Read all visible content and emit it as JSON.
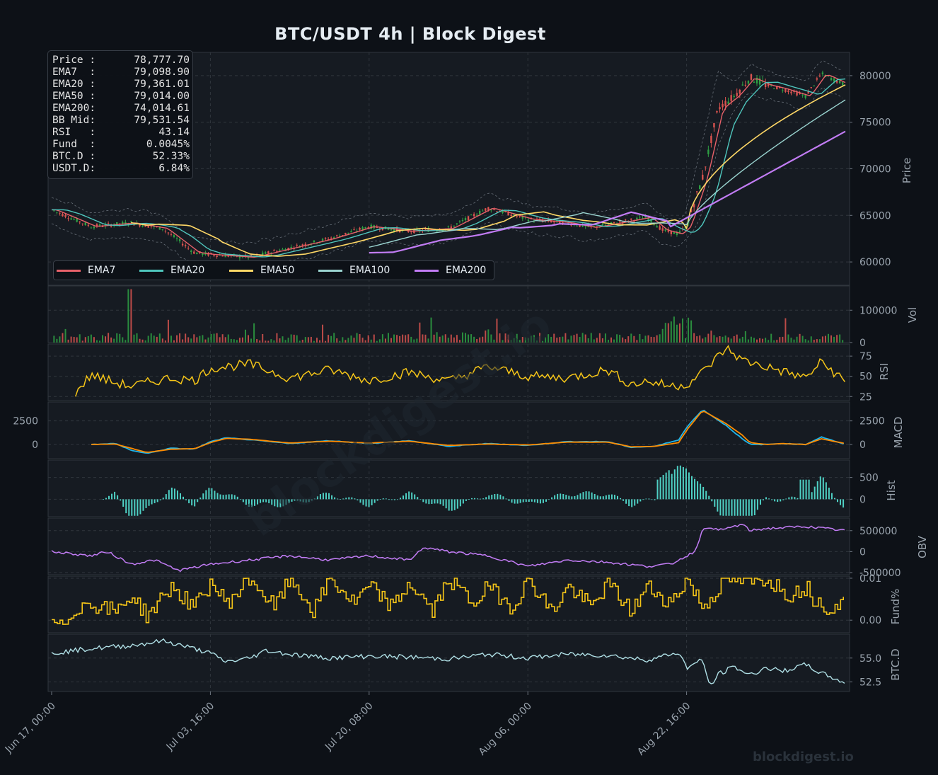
{
  "title": "BTC/USDT  4h  |  Block Digest",
  "watermark": "blockdigest.io",
  "brand": "blockdigest.io",
  "infobox": [
    {
      "key": "Price :",
      "value": "78,777.70"
    },
    {
      "key": "EMA7  :",
      "value": "79,098.90"
    },
    {
      "key": "EMA20 :",
      "value": "79,361.01"
    },
    {
      "key": "EMA50 :",
      "value": "79,014.00"
    },
    {
      "key": "EMA200:",
      "value": "74,014.61"
    },
    {
      "key": "BB Mid:",
      "value": "79,531.54"
    },
    {
      "key": "RSI   :",
      "value": "43.14"
    },
    {
      "key": "Fund  :",
      "value": "0.0045%"
    },
    {
      "key": "BTC.D :",
      "value": "52.33%"
    },
    {
      "key": "USDT.D:",
      "value": "6.84%"
    }
  ],
  "legend": [
    {
      "name": "EMA7",
      "color": "#e8616a"
    },
    {
      "name": "EMA20",
      "color": "#4fc6bd"
    },
    {
      "name": "EMA50",
      "color": "#ffd866"
    },
    {
      "name": "EMA100",
      "color": "#9ad4d0"
    },
    {
      "name": "EMA200",
      "color": "#c27cf5"
    }
  ],
  "colors": {
    "background": "#0d1117",
    "panel": "#161b22",
    "grid": "#30363d",
    "candle_up": "#2ea043",
    "candle_down": "#d9534f",
    "rsi": "#f5c518",
    "macd": "#1fb6ec",
    "signal": "#ff8c00",
    "hist": "#4fd1c5",
    "obv": "#c27cf5",
    "funding": "#f5c518",
    "btcd": "#b0e0e6",
    "text": "#9aa4ae"
  },
  "chart_data": {
    "type": "line",
    "x_tick_labels": [
      "Jun 17, 00:00",
      "Jul 03, 16:00",
      "Jul 20, 08:00",
      "Aug 06, 00:00",
      "Aug 22, 16:00"
    ],
    "panels": [
      {
        "id": "price",
        "ylabel": "Price",
        "ylim": [
          57500,
          82500
        ],
        "ticks": [
          "60000",
          "65000",
          "70000",
          "75000",
          "80000"
        ],
        "series": [
          "EMA7",
          "EMA20",
          "EMA50",
          "EMA100",
          "EMA200"
        ],
        "path_x": [
          0,
          5,
          10,
          14,
          18,
          20,
          25,
          30,
          35,
          40,
          45,
          50,
          55,
          60,
          65,
          68,
          70,
          75,
          77,
          79,
          80,
          82,
          84,
          86,
          88,
          90,
          92,
          95,
          97,
          100
        ],
        "path_y": [
          65600,
          63800,
          64200,
          63600,
          61000,
          60800,
          60500,
          61500,
          62500,
          63800,
          63300,
          63600,
          65800,
          64600,
          64200,
          63700,
          64000,
          64800,
          63400,
          63000,
          63900,
          69000,
          76500,
          77800,
          79800,
          79000,
          78600,
          77800,
          80200,
          79000
        ]
      },
      {
        "id": "vol",
        "ylabel": "Vol",
        "ylim": [
          0,
          175000
        ],
        "ticks": [
          "0",
          "100000"
        ]
      },
      {
        "id": "rsi",
        "ylabel": "RSI",
        "ylim": [
          20,
          90
        ],
        "ticks": [
          "25",
          "50",
          "75"
        ],
        "path_x": [
          3,
          5,
          8,
          10,
          15,
          18,
          20,
          25,
          30,
          35,
          40,
          45,
          50,
          55,
          60,
          65,
          70,
          73,
          75,
          78,
          80,
          82,
          85,
          87,
          90,
          95,
          97,
          100
        ],
        "path_y": [
          30,
          52,
          42,
          38,
          48,
          45,
          60,
          65,
          48,
          58,
          45,
          55,
          44,
          62,
          50,
          48,
          58,
          40,
          44,
          38,
          40,
          55,
          85,
          70,
          62,
          48,
          68,
          43
        ]
      },
      {
        "id": "macd",
        "ylabel": "MACD",
        "ylim": [
          -1500,
          4500
        ],
        "ticks": [
          "0",
          "2500"
        ],
        "left_tick": "2500",
        "path_x": [
          5,
          8,
          10,
          12,
          15,
          18,
          20,
          22,
          25,
          30,
          35,
          40,
          45,
          50,
          55,
          60,
          65,
          70,
          73,
          76,
          79,
          80,
          82,
          85,
          87,
          88,
          90,
          92,
          95,
          97,
          100
        ],
        "path_y": [
          0,
          100,
          -600,
          -950,
          -400,
          -500,
          300,
          700,
          500,
          100,
          400,
          100,
          400,
          -200,
          100,
          -100,
          300,
          300,
          -300,
          -200,
          500,
          1800,
          3700,
          2000,
          600,
          0,
          0,
          100,
          0,
          800,
          0
        ],
        "signal_path_y": [
          0,
          50,
          -400,
          -850,
          -500,
          -450,
          200,
          650,
          550,
          150,
          350,
          150,
          350,
          -100,
          50,
          -50,
          250,
          250,
          -250,
          -200,
          200,
          1500,
          3600,
          2200,
          1000,
          200,
          0,
          100,
          0,
          600,
          100
        ]
      },
      {
        "id": "hist",
        "ylabel": "Hist",
        "ylim": [
          -400,
          900
        ],
        "ticks": [
          "0",
          "500"
        ]
      },
      {
        "id": "obv",
        "ylabel": "OBV",
        "ylim": [
          -550000,
          800000
        ],
        "ticks": [
          "-500000",
          "0",
          "500000"
        ],
        "path_x": [
          0,
          5,
          7,
          10,
          13,
          16,
          20,
          25,
          30,
          35,
          40,
          45,
          47,
          50,
          55,
          60,
          65,
          70,
          75,
          78,
          81,
          82,
          83,
          84,
          87,
          88,
          90,
          95,
          100
        ],
        "path_y": [
          0,
          -100000,
          0,
          -300000,
          -200000,
          -450000,
          -300000,
          -200000,
          -100000,
          -200000,
          -100000,
          -200000,
          100000,
          0,
          -100000,
          -350000,
          -200000,
          -250000,
          -350000,
          -300000,
          0,
          500000,
          600000,
          500000,
          650000,
          500000,
          550000,
          600000,
          500000
        ]
      },
      {
        "id": "fund",
        "ylabel": "Fund%",
        "ylim": [
          -0.003,
          0.0105
        ],
        "ticks": [
          "0.00",
          "0.01"
        ],
        "path_x": [
          0,
          1,
          3,
          5,
          8,
          10,
          12,
          15,
          18,
          20,
          22,
          25,
          28,
          30,
          33,
          35,
          38,
          40,
          43,
          45,
          48,
          50,
          53,
          55,
          58,
          60,
          63,
          65,
          68,
          70,
          73,
          75,
          78,
          80,
          82,
          85,
          88,
          90,
          93,
          95,
          96,
          98,
          100
        ],
        "path_y": [
          0,
          -0.002,
          0.003,
          0.004,
          0.002,
          0.006,
          0.001,
          0.008,
          0.003,
          0.009,
          0.004,
          0.01,
          0.003,
          0.01,
          0.002,
          0.01,
          0.004,
          0.008,
          0.003,
          0.009,
          0.002,
          0.01,
          0.004,
          0.008,
          0.003,
          0.01,
          0.002,
          0.008,
          0.003,
          0.009,
          0.002,
          0.008,
          0.004,
          0.01,
          0.003,
          0.01,
          0.009,
          0.01,
          0.006,
          0.008,
          0.005,
          0.003,
          0.0045
        ]
      },
      {
        "id": "btcd",
        "ylabel": "BTC.D",
        "ylim": [
          51.5,
          57.5
        ],
        "ticks": [
          "52.5",
          "55.0"
        ],
        "path_x": [
          0,
          5,
          10,
          14,
          17,
          20,
          22,
          25,
          27,
          30,
          35,
          40,
          45,
          50,
          55,
          60,
          65,
          70,
          75,
          79,
          80,
          82,
          83,
          84,
          86,
          88,
          90,
          92,
          95,
          97,
          100
        ],
        "path_y": [
          55.5,
          56.0,
          56.3,
          56.8,
          56.2,
          55.5,
          54.6,
          55.0,
          55.8,
          55.4,
          55.0,
          55.2,
          55.1,
          54.9,
          55.4,
          55.0,
          55.4,
          55.3,
          54.8,
          55.6,
          54.0,
          54.8,
          52.0,
          53.3,
          54.1,
          53.2,
          54.0,
          53.6,
          54.3,
          53.4,
          52.4
        ]
      }
    ]
  }
}
